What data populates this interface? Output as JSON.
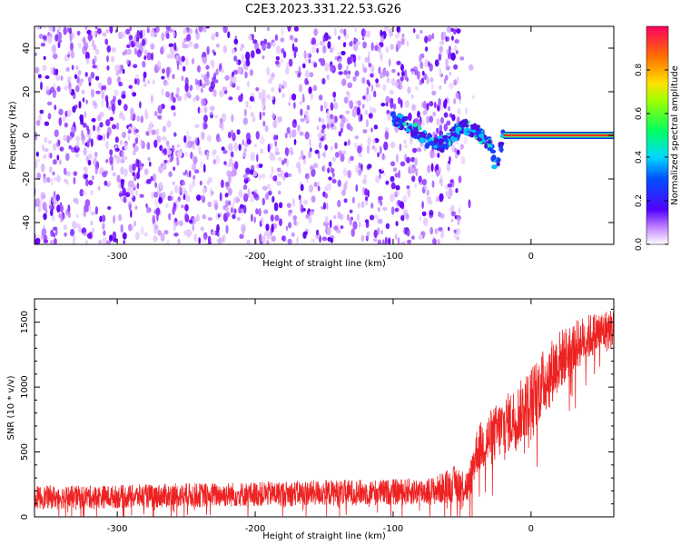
{
  "title": "C2E3.2023.331.22.53.G26",
  "colors": {
    "snr_line": "#ee2222",
    "axes": "#000000",
    "background": "#ffffff"
  },
  "chart_data": [
    {
      "type": "heatmap",
      "title": "",
      "xlabel": "Height of straight line (km)",
      "ylabel": "Frequency (Hz)",
      "xlim": [
        -360,
        60
      ],
      "ylim": [
        -50,
        50
      ],
      "x_ticks": [
        -300,
        -200,
        -100,
        0
      ],
      "x_tick_labels": [
        "-300",
        "-200",
        "-100",
        "0"
      ],
      "y_ticks": [
        -40,
        -20,
        0,
        20,
        40
      ],
      "y_tick_labels": [
        "-40",
        "-20",
        "0",
        "20",
        "40"
      ],
      "noise_region_x": [
        -360,
        -50
      ],
      "signal_track": [
        {
          "x": -100,
          "y": 8
        },
        {
          "x": -90,
          "y": 5
        },
        {
          "x": -80,
          "y": 0
        },
        {
          "x": -70,
          "y": -5
        },
        {
          "x": -60,
          "y": -2
        },
        {
          "x": -50,
          "y": 4
        },
        {
          "x": -40,
          "y": 2
        },
        {
          "x": -30,
          "y": -4
        },
        {
          "x": -25,
          "y": -15
        },
        {
          "x": -20,
          "y": 0
        },
        {
          "x": 0,
          "y": 0
        },
        {
          "x": 60,
          "y": 0
        }
      ],
      "colorbar": {
        "label": "Normalized spectral amplitude",
        "range": [
          0,
          1
        ],
        "ticks": [
          0.0,
          0.2,
          0.4,
          0.6,
          0.8
        ],
        "tick_labels": [
          "0.0",
          "0.2",
          "0.4",
          "0.6",
          "0.8"
        ],
        "orientation": "vertical"
      },
      "grid": false
    },
    {
      "type": "line",
      "title": "",
      "xlabel": "Height of straight line (km)",
      "ylabel": "SNR (10 * v/v)",
      "xlim": [
        -360,
        60
      ],
      "ylim": [
        0,
        1680
      ],
      "x_ticks": [
        -300,
        -200,
        -100,
        0
      ],
      "x_tick_labels": [
        "-300",
        "-200",
        "-100",
        "0"
      ],
      "y_ticks": [
        0,
        500,
        1000,
        1500
      ],
      "y_tick_labels": [
        "0",
        "500",
        "1000",
        "1500"
      ],
      "series": [
        {
          "x": [
            -360,
            -300,
            -250,
            -200,
            -150,
            -100,
            -70,
            -55,
            -45,
            -40,
            -35,
            -30,
            -20,
            -10,
            0,
            10,
            20,
            30,
            40,
            50,
            60
          ],
          "y": [
            150,
            155,
            165,
            175,
            185,
            190,
            200,
            260,
            230,
            500,
            560,
            600,
            700,
            780,
            900,
            1050,
            1200,
            1300,
            1380,
            1420,
            1450
          ],
          "spread": [
            90,
            90,
            95,
            95,
            100,
            100,
            110,
            140,
            140,
            180,
            200,
            220,
            230,
            240,
            260,
            260,
            240,
            200,
            180,
            170,
            160
          ]
        }
      ],
      "grid": false
    }
  ]
}
